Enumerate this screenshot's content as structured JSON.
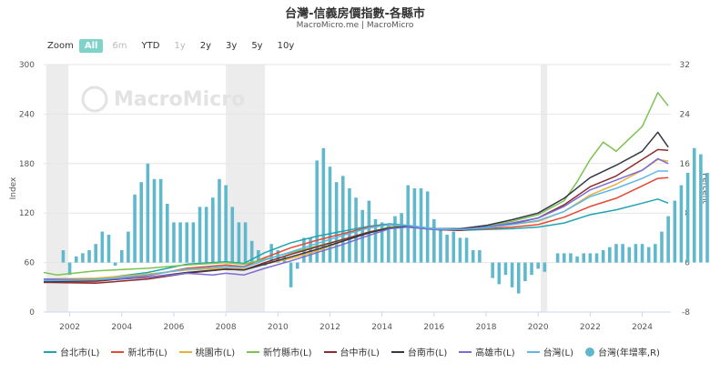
{
  "title": "台灣-信義房價指數-各縣市",
  "subtitle": "MacroMicro.me | MacroMicro",
  "watermark": "MacroMicro",
  "zoom": {
    "label": "Zoom",
    "buttons": [
      {
        "label": "All",
        "state": "active"
      },
      {
        "label": "6m",
        "state": "disabled"
      },
      {
        "label": "YTD",
        "state": "normal"
      },
      {
        "label": "1y",
        "state": "disabled"
      },
      {
        "label": "2y",
        "state": "normal"
      },
      {
        "label": "3y",
        "state": "normal"
      },
      {
        "label": "5y",
        "state": "normal"
      },
      {
        "label": "10y",
        "state": "normal"
      }
    ]
  },
  "chart_data": {
    "type": "line",
    "x_range": [
      2001.0,
      2025.1
    ],
    "x_ticks": [
      "2002",
      "2004",
      "2006",
      "2008",
      "2010",
      "2012",
      "2014",
      "2016",
      "2018",
      "2020",
      "2022",
      "2024"
    ],
    "left_axis": {
      "label": "Index",
      "range": [
        0,
        300
      ],
      "ticks": [
        "0",
        "60",
        "120",
        "180",
        "240",
        "300"
      ]
    },
    "right_axis": {
      "label": "Percent",
      "range": [
        -8,
        32
      ],
      "ticks": [
        "-8",
        "0",
        "8",
        "16",
        "24",
        "32"
      ]
    },
    "shaded_periods": [
      [
        2001.1,
        2001.95
      ],
      [
        2008.0,
        2009.5
      ],
      [
        2020.1,
        2020.35
      ]
    ],
    "grid": true,
    "legend_position": "bottom",
    "series": [
      {
        "name": "台北市(L)",
        "color": "#20a5b0",
        "points": [
          [
            2001.0,
            38
          ],
          [
            2003.0,
            40
          ],
          [
            2005.0,
            48
          ],
          [
            2006.5,
            58
          ],
          [
            2008.0,
            61
          ],
          [
            2008.7,
            59
          ],
          [
            2009.5,
            72
          ],
          [
            2010.5,
            84
          ],
          [
            2011.5,
            92
          ],
          [
            2012.5,
            98
          ],
          [
            2013.5,
            104
          ],
          [
            2014.3,
            107
          ],
          [
            2015.0,
            105
          ],
          [
            2016.0,
            100
          ],
          [
            2017.0,
            99
          ],
          [
            2018.0,
            100
          ],
          [
            2019.0,
            101
          ],
          [
            2020.0,
            103
          ],
          [
            2021.0,
            108
          ],
          [
            2022.0,
            118
          ],
          [
            2023.0,
            124
          ],
          [
            2024.0,
            132
          ],
          [
            2024.6,
            137
          ],
          [
            2025.0,
            132
          ]
        ]
      },
      {
        "name": "新北市(L)",
        "color": "#e24a33",
        "points": [
          [
            2001.0,
            36
          ],
          [
            2003.0,
            37
          ],
          [
            2005.0,
            44
          ],
          [
            2006.5,
            53
          ],
          [
            2008.0,
            57
          ],
          [
            2008.7,
            55
          ],
          [
            2009.5,
            66
          ],
          [
            2010.5,
            78
          ],
          [
            2011.5,
            87
          ],
          [
            2012.5,
            95
          ],
          [
            2013.5,
            103
          ],
          [
            2014.3,
            106
          ],
          [
            2015.0,
            104
          ],
          [
            2016.0,
            101
          ],
          [
            2017.0,
            100
          ],
          [
            2018.0,
            101
          ],
          [
            2019.0,
            103
          ],
          [
            2020.0,
            106
          ],
          [
            2021.0,
            115
          ],
          [
            2022.0,
            128
          ],
          [
            2023.0,
            138
          ],
          [
            2024.0,
            153
          ],
          [
            2024.6,
            162
          ],
          [
            2025.0,
            163
          ]
        ]
      },
      {
        "name": "桃園市(L)",
        "color": "#e8b23a",
        "points": [
          [
            2001.0,
            40
          ],
          [
            2003.0,
            41
          ],
          [
            2005.0,
            46
          ],
          [
            2006.5,
            51
          ],
          [
            2008.0,
            53
          ],
          [
            2008.7,
            52
          ],
          [
            2009.5,
            58
          ],
          [
            2010.5,
            65
          ],
          [
            2011.5,
            74
          ],
          [
            2012.5,
            86
          ],
          [
            2013.5,
            97
          ],
          [
            2014.3,
            103
          ],
          [
            2015.0,
            103
          ],
          [
            2016.0,
            101
          ],
          [
            2017.0,
            100
          ],
          [
            2018.0,
            102
          ],
          [
            2019.0,
            106
          ],
          [
            2020.0,
            110
          ],
          [
            2021.0,
            122
          ],
          [
            2022.0,
            142
          ],
          [
            2023.0,
            155
          ],
          [
            2024.0,
            172
          ],
          [
            2024.6,
            185
          ],
          [
            2025.0,
            183
          ]
        ]
      },
      {
        "name": "新竹縣市(L)",
        "color": "#7cc352",
        "points": [
          [
            2001.0,
            48
          ],
          [
            2001.5,
            45
          ],
          [
            2003.0,
            50
          ],
          [
            2005.0,
            53
          ],
          [
            2006.5,
            57
          ],
          [
            2008.0,
            60
          ],
          [
            2008.7,
            58
          ],
          [
            2009.5,
            64
          ],
          [
            2010.5,
            72
          ],
          [
            2011.5,
            80
          ],
          [
            2012.5,
            88
          ],
          [
            2013.5,
            97
          ],
          [
            2014.3,
            103
          ],
          [
            2015.0,
            105
          ],
          [
            2016.0,
            101
          ],
          [
            2017.0,
            100
          ],
          [
            2018.0,
            104
          ],
          [
            2019.0,
            110
          ],
          [
            2020.0,
            118
          ],
          [
            2021.0,
            135
          ],
          [
            2021.5,
            158
          ],
          [
            2022.0,
            185
          ],
          [
            2022.5,
            206
          ],
          [
            2023.0,
            195
          ],
          [
            2023.5,
            210
          ],
          [
            2024.0,
            225
          ],
          [
            2024.6,
            266
          ],
          [
            2025.0,
            250
          ]
        ]
      },
      {
        "name": "台中市(L)",
        "color": "#8b2d2d",
        "points": [
          [
            2001.0,
            36
          ],
          [
            2003.0,
            35
          ],
          [
            2005.0,
            40
          ],
          [
            2006.5,
            47
          ],
          [
            2008.0,
            52
          ],
          [
            2008.7,
            51
          ],
          [
            2009.5,
            60
          ],
          [
            2010.5,
            70
          ],
          [
            2011.5,
            79
          ],
          [
            2012.5,
            88
          ],
          [
            2013.5,
            97
          ],
          [
            2014.3,
            102
          ],
          [
            2015.0,
            103
          ],
          [
            2016.0,
            100
          ],
          [
            2017.0,
            99
          ],
          [
            2018.0,
            102
          ],
          [
            2019.0,
            107
          ],
          [
            2020.0,
            114
          ],
          [
            2021.0,
            130
          ],
          [
            2022.0,
            152
          ],
          [
            2023.0,
            165
          ],
          [
            2024.0,
            185
          ],
          [
            2024.6,
            197
          ],
          [
            2025.0,
            196
          ]
        ]
      },
      {
        "name": "台南市(L)",
        "color": "#333645",
        "points": [
          [
            2001.0,
            37
          ],
          [
            2003.0,
            38
          ],
          [
            2005.0,
            42
          ],
          [
            2006.5,
            48
          ],
          [
            2008.0,
            52
          ],
          [
            2008.7,
            51
          ],
          [
            2009.5,
            58
          ],
          [
            2010.5,
            67
          ],
          [
            2011.5,
            76
          ],
          [
            2012.5,
            86
          ],
          [
            2013.5,
            96
          ],
          [
            2014.3,
            102
          ],
          [
            2015.0,
            104
          ],
          [
            2016.0,
            101
          ],
          [
            2017.0,
            101
          ],
          [
            2018.0,
            105
          ],
          [
            2019.0,
            112
          ],
          [
            2020.0,
            120
          ],
          [
            2021.0,
            138
          ],
          [
            2022.0,
            163
          ],
          [
            2023.0,
            178
          ],
          [
            2024.0,
            195
          ],
          [
            2024.6,
            218
          ],
          [
            2025.0,
            200
          ]
        ]
      },
      {
        "name": "高雄市(L)",
        "color": "#7b6bd6",
        "points": [
          [
            2001.0,
            40
          ],
          [
            2003.0,
            39
          ],
          [
            2005.0,
            42
          ],
          [
            2006.5,
            47
          ],
          [
            2007.5,
            45
          ],
          [
            2008.0,
            47
          ],
          [
            2008.7,
            45
          ],
          [
            2009.5,
            53
          ],
          [
            2010.5,
            62
          ],
          [
            2011.5,
            72
          ],
          [
            2012.5,
            82
          ],
          [
            2013.5,
            93
          ],
          [
            2014.3,
            101
          ],
          [
            2015.0,
            103
          ],
          [
            2016.0,
            100
          ],
          [
            2017.0,
            100
          ],
          [
            2018.0,
            103
          ],
          [
            2019.0,
            108
          ],
          [
            2020.0,
            114
          ],
          [
            2021.0,
            128
          ],
          [
            2022.0,
            148
          ],
          [
            2023.0,
            160
          ],
          [
            2024.0,
            172
          ],
          [
            2024.6,
            186
          ],
          [
            2025.0,
            180
          ]
        ]
      },
      {
        "name": "台灣(L)",
        "color": "#5eb7e8",
        "points": [
          [
            2001.0,
            38
          ],
          [
            2003.0,
            39
          ],
          [
            2005.0,
            45
          ],
          [
            2006.5,
            52
          ],
          [
            2008.0,
            55
          ],
          [
            2008.7,
            54
          ],
          [
            2009.5,
            63
          ],
          [
            2010.5,
            73
          ],
          [
            2011.5,
            83
          ],
          [
            2012.5,
            93
          ],
          [
            2013.5,
            102
          ],
          [
            2014.3,
            106
          ],
          [
            2015.0,
            105
          ],
          [
            2016.0,
            101
          ],
          [
            2017.0,
            100
          ],
          [
            2018.0,
            102
          ],
          [
            2019.0,
            106
          ],
          [
            2020.0,
            111
          ],
          [
            2021.0,
            122
          ],
          [
            2022.0,
            140
          ],
          [
            2023.0,
            150
          ],
          [
            2024.0,
            162
          ],
          [
            2024.6,
            171
          ],
          [
            2025.0,
            171
          ]
        ]
      },
      {
        "name": "台灣(年增率,R)",
        "type": "bar",
        "color": "#5fb8cc",
        "bar_years_start": 2001.75,
        "bar_step": 0.25,
        "values": [
          2.0,
          -2.0,
          1.0,
          1.5,
          2.0,
          3.0,
          5.0,
          4.5,
          -0.5,
          2.0,
          5.0,
          11.0,
          13.0,
          16.0,
          13.5,
          13.5,
          9.5,
          6.5,
          6.5,
          6.5,
          6.5,
          9.0,
          9.0,
          10.5,
          13.5,
          12.5,
          9.0,
          6.5,
          6.5,
          3.5,
          2.0,
          -0.5,
          3.0,
          2.0,
          1.0,
          -4.0,
          -1.0,
          4.0,
          4.0,
          16.5,
          18.5,
          15.5,
          13.0,
          14.0,
          12.0,
          10.5,
          8.5,
          10.0,
          7.0,
          6.5,
          6.0,
          7.5,
          8.0,
          12.5,
          12.0,
          12.0,
          11.5,
          7.0,
          5.5,
          4.5,
          5.0,
          4.0,
          4.0,
          2.0,
          2.0,
          0.0,
          -2.5,
          -3.5,
          -2.0,
          -4.0,
          -5.0,
          -3.0,
          -2.0,
          -1.0,
          -1.5,
          0.0,
          1.5,
          1.5,
          1.5,
          1.0,
          1.5,
          1.5,
          1.5,
          2.0,
          2.5,
          3.0,
          3.0,
          2.5,
          3.0,
          3.0,
          2.5,
          3.0,
          5.0,
          7.5,
          10.0,
          12.5,
          14.5,
          18.5,
          17.5,
          14.5,
          9.5,
          5.5,
          3.0,
          4.0,
          7.5,
          11.0,
          13.5,
          15.0,
          16.0,
          13.5,
          10.0,
          9.0
        ]
      }
    ]
  },
  "legend": [
    {
      "label": "台北市(L)",
      "color": "#20a5b0",
      "kind": "line"
    },
    {
      "label": "新北市(L)",
      "color": "#e24a33",
      "kind": "line"
    },
    {
      "label": "桃園市(L)",
      "color": "#e8b23a",
      "kind": "line"
    },
    {
      "label": "新竹縣市(L)",
      "color": "#7cc352",
      "kind": "line"
    },
    {
      "label": "台中市(L)",
      "color": "#8b2d2d",
      "kind": "line"
    },
    {
      "label": "台南市(L)",
      "color": "#333645",
      "kind": "line"
    },
    {
      "label": "高雄市(L)",
      "color": "#7b6bd6",
      "kind": "line"
    },
    {
      "label": "台灣(L)",
      "color": "#5eb7e8",
      "kind": "line"
    },
    {
      "label": "台灣(年增率,R)",
      "color": "#5fb8cc",
      "kind": "dot"
    }
  ]
}
